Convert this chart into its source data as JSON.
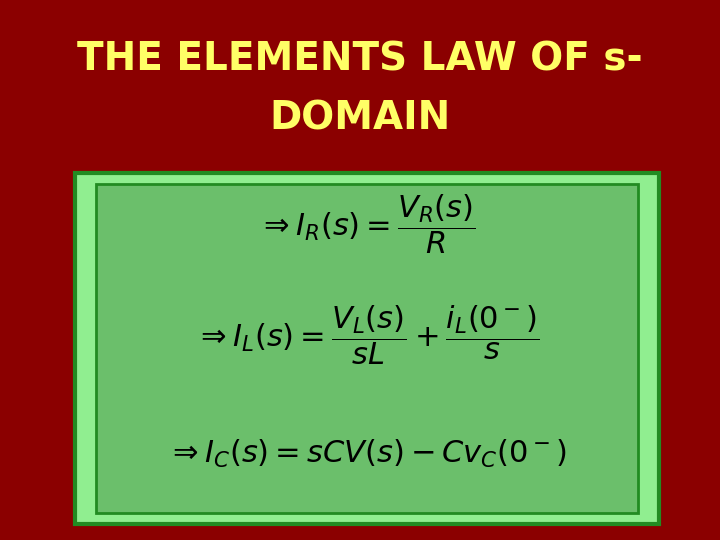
{
  "title_line1": "THE ELEMENTS LAW OF s-",
  "title_line2": "DOMAIN",
  "title_color": "#FFFF66",
  "bg_color": "#8B0000",
  "outer_box_color": "#90EE90",
  "inner_box_color": "#6BBF6B",
  "eq1": "$\\Rightarrow I_R(s) = \\dfrac{V_R(s)}{R}$",
  "eq2": "$\\Rightarrow I_L(s) = \\dfrac{V_L(s)}{sL} + \\dfrac{i_L(0^-)}{s}$",
  "eq3": "$\\Rightarrow I_C(s) = sCV(s) - Cv_C(0^-)$",
  "eq_color": "#000000",
  "title_fontsize": 28,
  "eq_fontsize": 22
}
